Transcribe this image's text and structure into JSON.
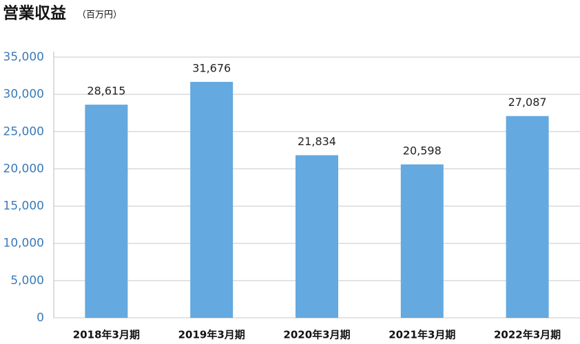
{
  "chart_data": {
    "type": "bar",
    "title": "営業収益",
    "subtitle": "（百万円）",
    "categories": [
      "2018年3月期",
      "2019年3月期",
      "2020年3月期",
      "2021年3月期",
      "2022年3月期"
    ],
    "values": [
      28615,
      31676,
      21834,
      20598,
      27087
    ],
    "value_labels": [
      "28,615",
      "31,676",
      "21,834",
      "20,598",
      "27,087"
    ],
    "color": "#64a9e0",
    "ylim": [
      0,
      35000
    ],
    "yticks": [
      0,
      {
        "value": 5000,
        "label": "5,000"
      },
      {
        "value": 10000,
        "label": "10,000"
      },
      {
        "value": 15000,
        "label": "15,000"
      },
      {
        "value": 20000,
        "label": "20,000"
      },
      {
        "value": 25000,
        "label": "25,000"
      },
      {
        "value": 30000,
        "label": "30,000"
      },
      {
        "value": 35000,
        "label": "35,000"
      }
    ],
    "grid": true
  }
}
